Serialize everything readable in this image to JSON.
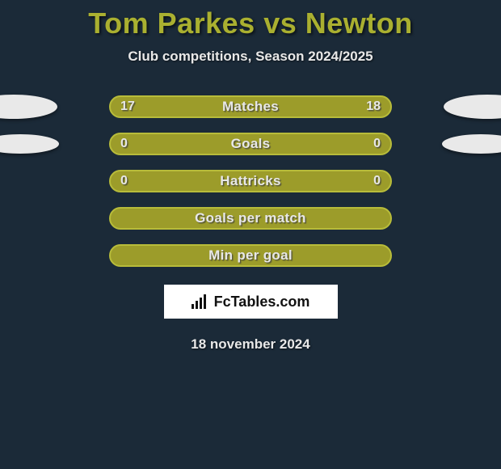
{
  "title": "Tom Parkes vs Newton",
  "subtitle": "Club competitions, Season 2024/2025",
  "date": "18 november 2024",
  "logo_text": "FcTables.com",
  "colors": {
    "background": "#1b2a38",
    "title": "#aab030",
    "bar_fill": "#9c9c2a",
    "bar_border": "#b8bc3a",
    "text_light": "#e7e7e7",
    "ellipse": "#e9e9e9",
    "logo_bg": "#ffffff"
  },
  "rows": [
    {
      "label": "Matches",
      "left": "17",
      "right": "18",
      "ellipse_left": true,
      "ellipse_right": true,
      "ellipse_size": "large"
    },
    {
      "label": "Goals",
      "left": "0",
      "right": "0",
      "ellipse_left": true,
      "ellipse_right": true,
      "ellipse_size": "small"
    },
    {
      "label": "Hattricks",
      "left": "0",
      "right": "0",
      "ellipse_left": false,
      "ellipse_right": false
    },
    {
      "label": "Goals per match",
      "left": "",
      "right": "",
      "ellipse_left": false,
      "ellipse_right": false
    },
    {
      "label": "Min per goal",
      "left": "",
      "right": "",
      "ellipse_left": false,
      "ellipse_right": false
    }
  ]
}
